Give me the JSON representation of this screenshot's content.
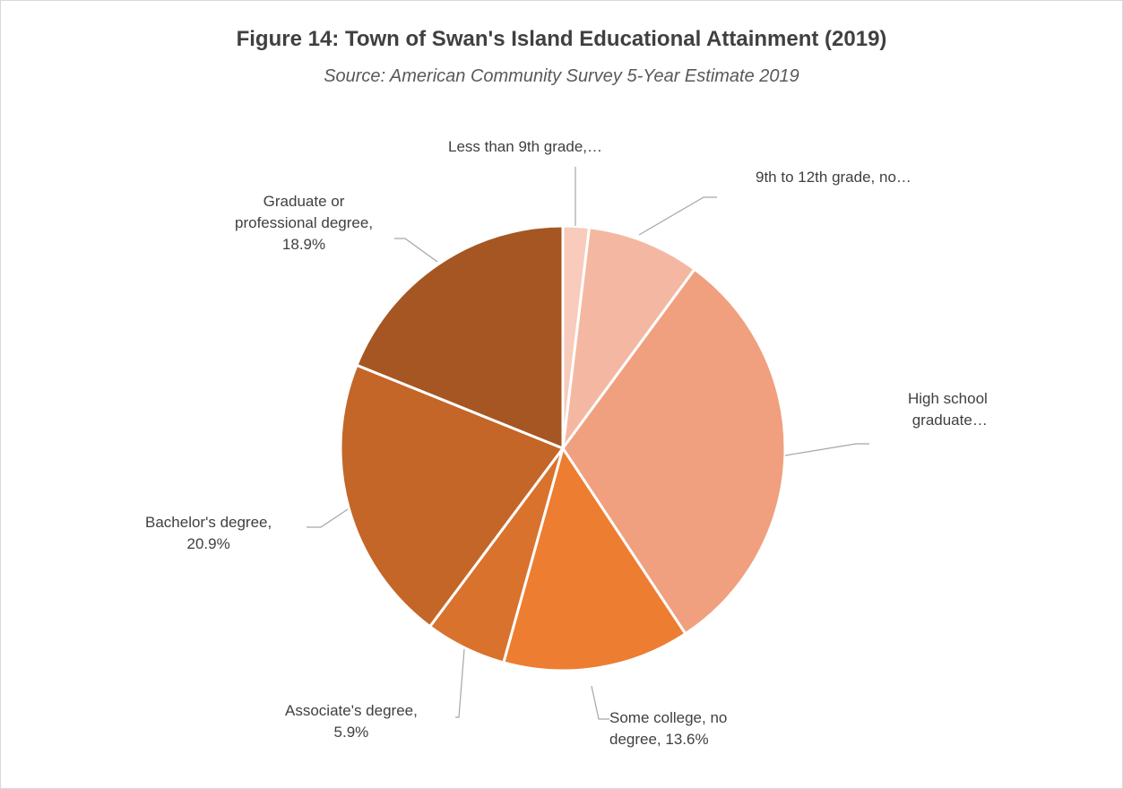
{
  "chart_data": {
    "type": "pie",
    "title": "Figure 14: Town of Swan's Island Educational Attainment (2019)",
    "subtitle": "Source: American Community Survey 5-Year Estimate 2019",
    "slices": [
      {
        "label_lines": [
          "Less than 9th grade,…"
        ],
        "value": 1.9,
        "color": "#F8CBBD"
      },
      {
        "label_lines": [
          "9th to 12th grade, no…"
        ],
        "value": 8.2,
        "color": "#F4B8A2"
      },
      {
        "label_lines": [
          "High school",
          "graduate…"
        ],
        "value": 30.6,
        "color": "#F0A07E"
      },
      {
        "label_lines": [
          "Some college, no",
          "degree, 13.6%"
        ],
        "value": 13.6,
        "color": "#ED7D31"
      },
      {
        "label_lines": [
          "Associate's degree,",
          "5.9%"
        ],
        "value": 5.9,
        "color": "#D9722D"
      },
      {
        "label_lines": [
          "Bachelor's degree,",
          "20.9%"
        ],
        "value": 20.9,
        "color": "#C46628"
      },
      {
        "label_lines": [
          "Graduate or",
          "professional degree,",
          "18.9%"
        ],
        "value": 18.9,
        "color": "#A65622"
      }
    ]
  }
}
